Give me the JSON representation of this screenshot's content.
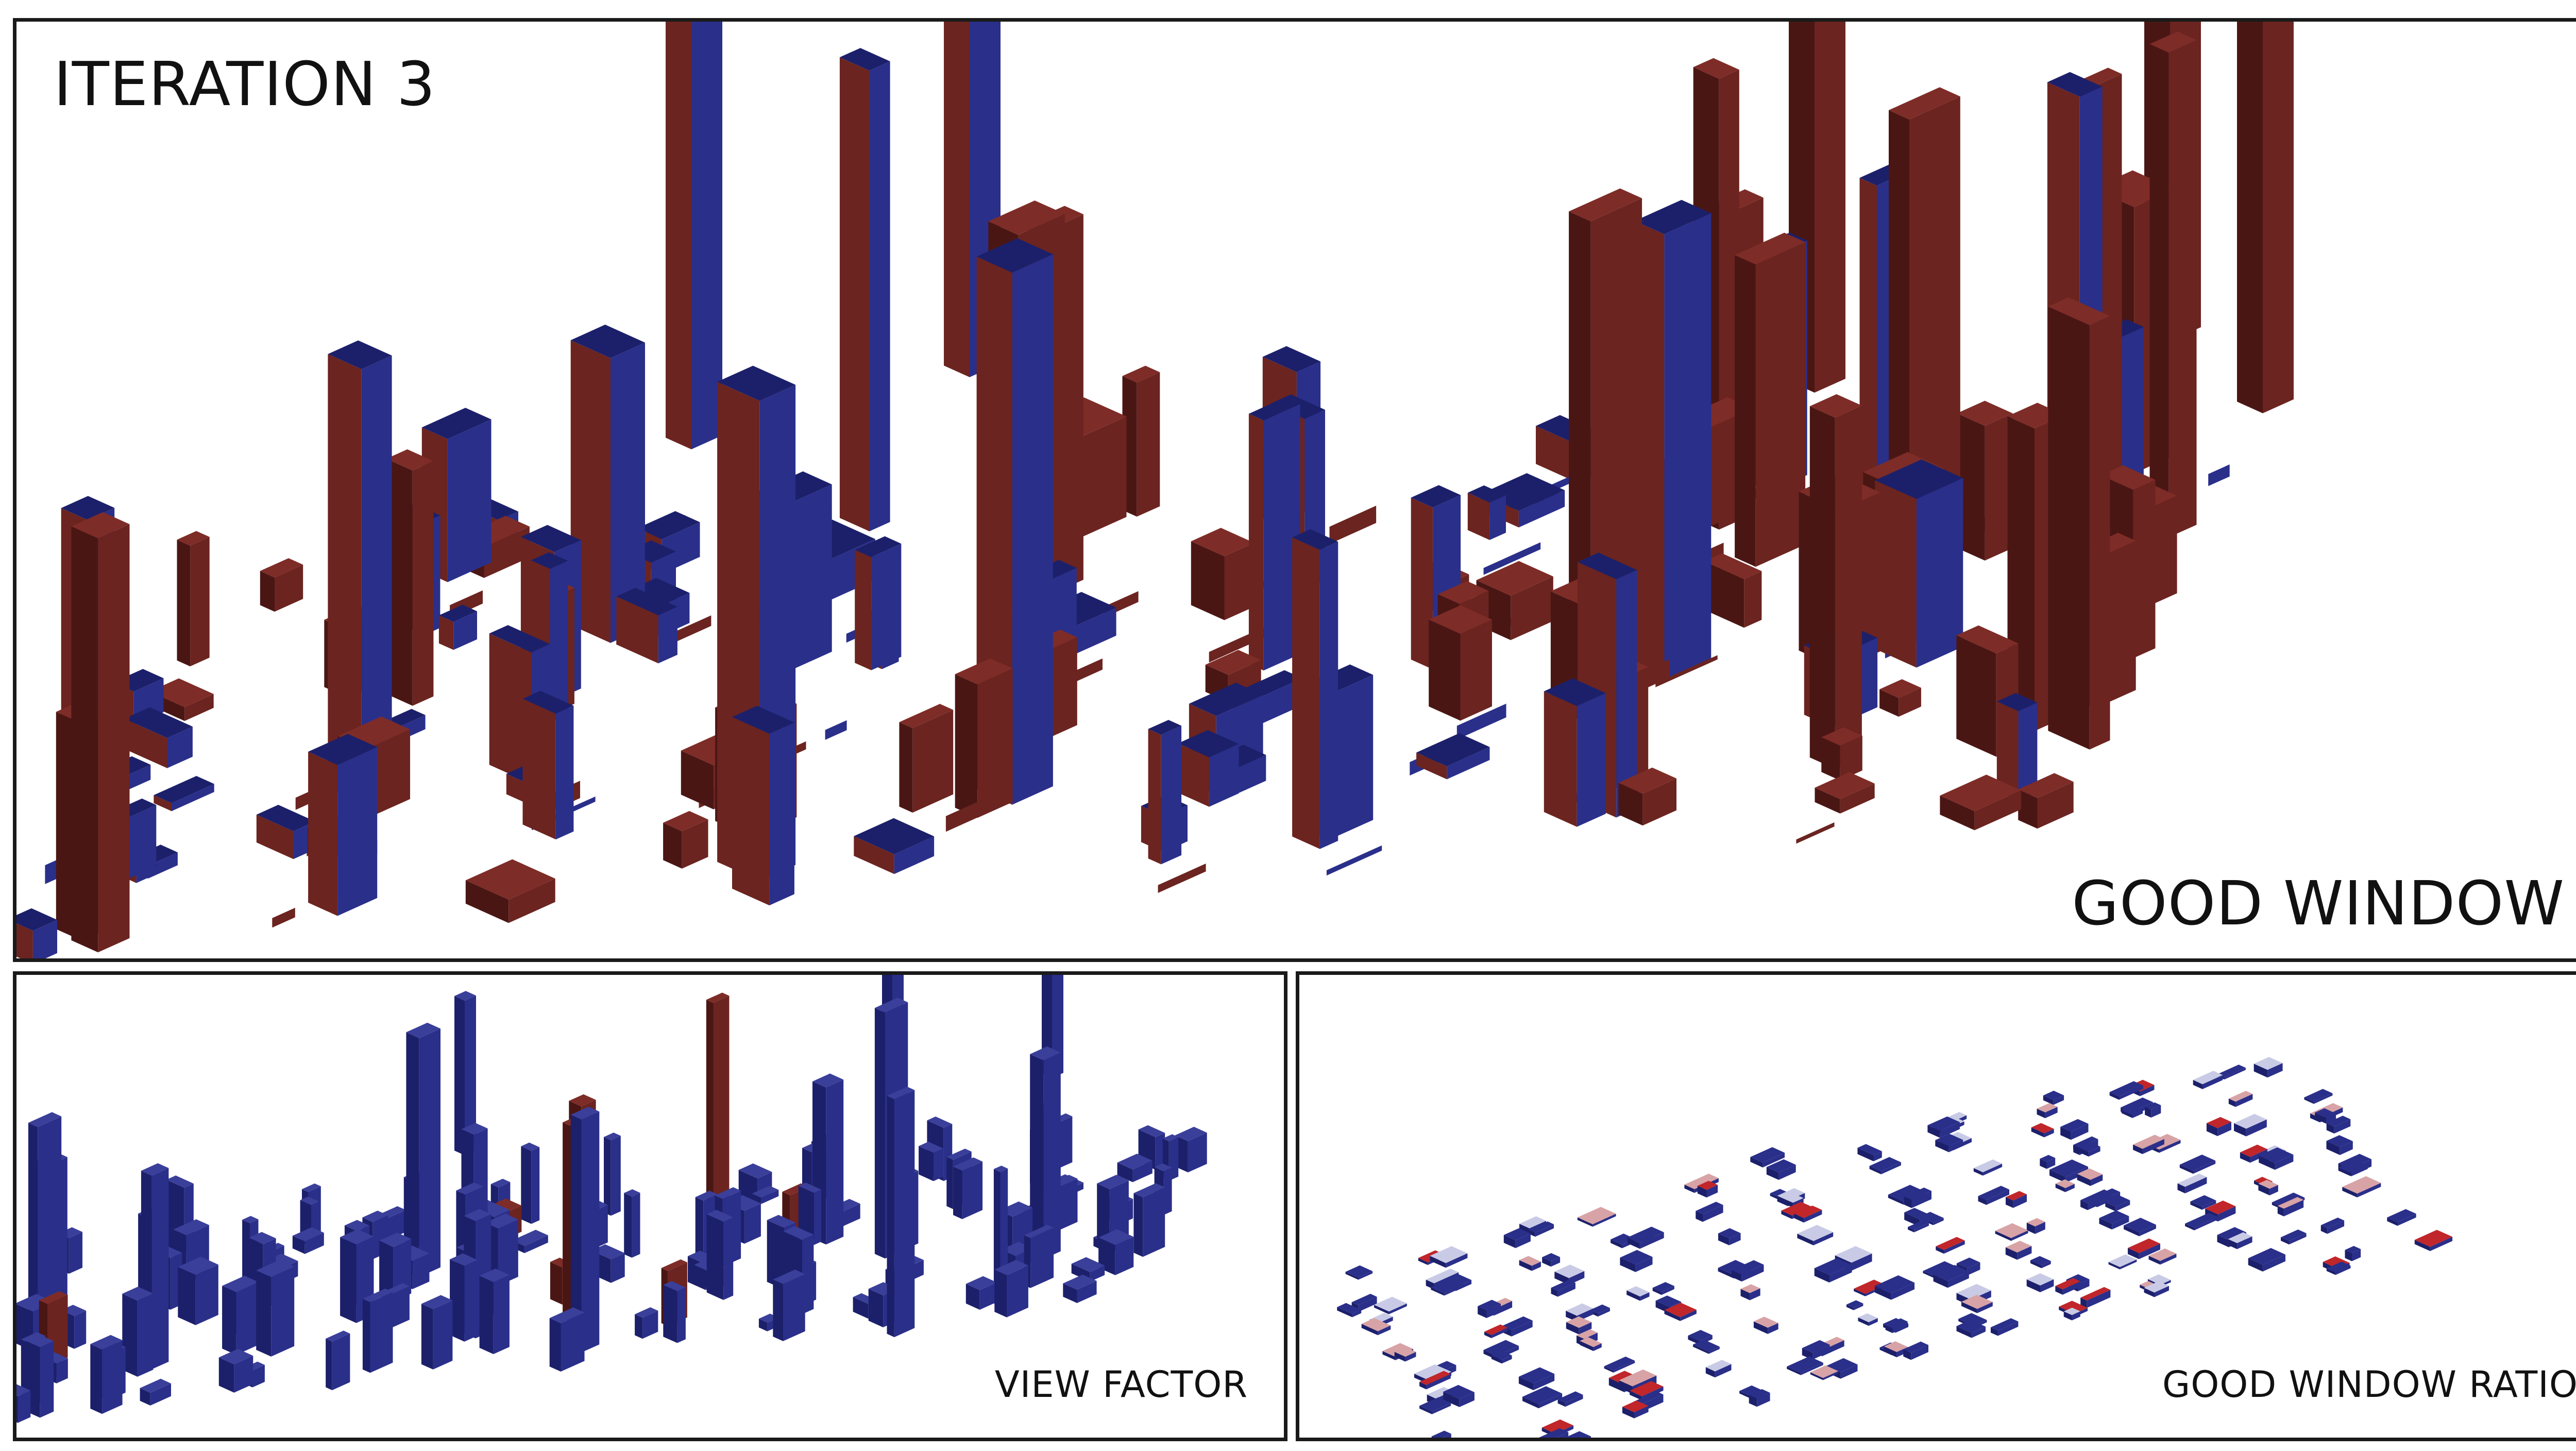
{
  "title": "ITERATION 3",
  "main_panel": {
    "caption": "GOOD WINDOW"
  },
  "left_panel": {
    "caption": "VIEW FACTOR"
  },
  "right_panel": {
    "caption": "GOOD WINDOW RATIO"
  },
  "colors": {
    "blue": "#2a2f8a",
    "blue_dark": "#1c206a",
    "red": "#6b2420",
    "red_dark": "#4a1614",
    "pale": "#c9cbe6",
    "pink": "#d8a3a6",
    "red_bright": "#c0262a",
    "border": "#1a1a1a"
  }
}
